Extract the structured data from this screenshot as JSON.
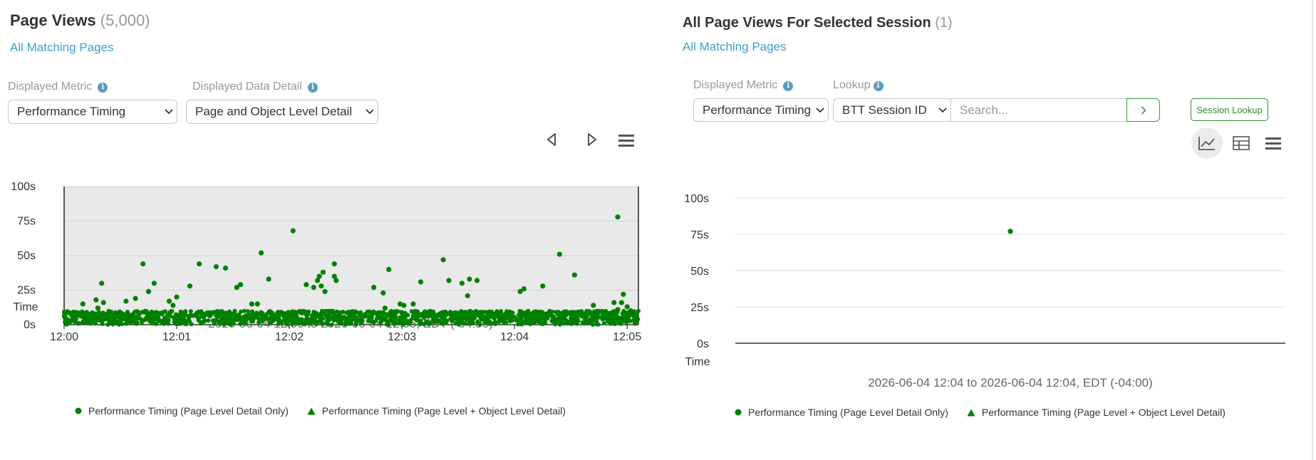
{
  "left": {
    "title": "Page Views",
    "count": "(5,000)",
    "link": "All Matching Pages",
    "metric_label": "Displayed Metric",
    "metric_value": "Performance Timing",
    "detail_label": "Displayed Data Detail",
    "detail_value": "Page and Object Level Detail",
    "time_range": "2026-06-04 12:00 to 2026-06-04 12:05, EDT (-04:00)"
  },
  "right": {
    "title": "All Page Views For Selected Session",
    "count": "(1)",
    "link": "All Matching Pages",
    "metric_label": "Displayed Metric",
    "metric_value": "Performance Timing",
    "lookup_label": "Lookup",
    "lookup_value": "BTT Session ID",
    "search_placeholder": "Search...",
    "session_lookup_label": "Session Lookup",
    "time_range": "2026-06-04 12:04 to 2026-06-04 12:04, EDT (-04:00)"
  },
  "legend": {
    "page_only": "Performance Timing (Page Level Detail Only)",
    "page_object": "Performance Timing (Page Level + Object Level Detail)"
  },
  "colors": {
    "series": "#008000",
    "link": "#3aa2c6",
    "plot_bg": "#e9e9e9",
    "accent_green": "#2e8b2e"
  },
  "icons": {
    "left_toolbar": [
      "triangle-left-icon",
      "triangle-right-icon",
      "hamburger-menu-icon"
    ],
    "right_toolbar": [
      "line-chart-icon",
      "table-icon",
      "hamburger-menu-icon"
    ]
  },
  "chart_data": [
    {
      "type": "scatter",
      "title": "Page Views",
      "xlabel": "Time",
      "ylabel": "",
      "x_ticks": [
        "12:00",
        "12:01",
        "12:02",
        "12:03",
        "12:04",
        "12:05"
      ],
      "y_ticks": [
        "0s",
        "25s",
        "50s",
        "75s",
        "100s"
      ],
      "xlim": [
        "12:00:00",
        "12:05:06"
      ],
      "ylim": [
        0,
        100
      ],
      "grid": true,
      "legend_position": "bottom",
      "dense_band": {
        "description": "thousands of page views between 0s and 10s",
        "y_range": [
          0,
          10
        ]
      },
      "series": [
        {
          "name": "Performance Timing (Page Level Detail Only)",
          "marker": "circle",
          "points": [
            {
              "x": "12:00:42",
              "y": 44
            },
            {
              "x": "12:00:20",
              "y": 30
            },
            {
              "x": "12:00:10",
              "y": 15
            },
            {
              "x": "12:00:17",
              "y": 18
            },
            {
              "x": "12:00:21",
              "y": 16
            },
            {
              "x": "12:00:18",
              "y": 12
            },
            {
              "x": "12:00:33",
              "y": 17
            },
            {
              "x": "12:00:38",
              "y": 19
            },
            {
              "x": "12:00:45",
              "y": 24
            },
            {
              "x": "12:00:48",
              "y": 30
            },
            {
              "x": "12:00:56",
              "y": 17
            },
            {
              "x": "12:00:58",
              "y": 14
            },
            {
              "x": "12:01:00",
              "y": 20
            },
            {
              "x": "12:01:07",
              "y": 28
            },
            {
              "x": "12:01:12",
              "y": 44
            },
            {
              "x": "12:01:21",
              "y": 42
            },
            {
              "x": "12:01:26",
              "y": 41
            },
            {
              "x": "12:01:32",
              "y": 27
            },
            {
              "x": "12:01:34",
              "y": 29
            },
            {
              "x": "12:01:40",
              "y": 15
            },
            {
              "x": "12:01:43",
              "y": 15
            },
            {
              "x": "12:01:45",
              "y": 52
            },
            {
              "x": "12:01:49",
              "y": 33
            },
            {
              "x": "12:02:02",
              "y": 68
            },
            {
              "x": "12:02:09",
              "y": 29
            },
            {
              "x": "12:02:13",
              "y": 27
            },
            {
              "x": "12:02:15",
              "y": 32
            },
            {
              "x": "12:02:16",
              "y": 35
            },
            {
              "x": "12:02:17",
              "y": 28
            },
            {
              "x": "12:02:18",
              "y": 38
            },
            {
              "x": "12:02:19",
              "y": 24
            },
            {
              "x": "12:02:24",
              "y": 44
            },
            {
              "x": "12:02:24",
              "y": 35
            },
            {
              "x": "12:02:25",
              "y": 32
            },
            {
              "x": "12:02:45",
              "y": 27
            },
            {
              "x": "12:02:50",
              "y": 23
            },
            {
              "x": "12:02:51",
              "y": 12
            },
            {
              "x": "12:02:53",
              "y": 40
            },
            {
              "x": "12:02:59",
              "y": 15
            },
            {
              "x": "12:03:01",
              "y": 14
            },
            {
              "x": "12:03:06",
              "y": 15
            },
            {
              "x": "12:03:10",
              "y": 31
            },
            {
              "x": "12:03:22",
              "y": 47
            },
            {
              "x": "12:03:25",
              "y": 32
            },
            {
              "x": "12:03:32",
              "y": 30
            },
            {
              "x": "12:03:35",
              "y": 21
            },
            {
              "x": "12:03:36",
              "y": 33
            },
            {
              "x": "12:03:40",
              "y": 32
            },
            {
              "x": "12:04:03",
              "y": 24
            },
            {
              "x": "12:04:05",
              "y": 26
            },
            {
              "x": "12:04:15",
              "y": 28
            },
            {
              "x": "12:04:24",
              "y": 51
            },
            {
              "x": "12:04:32",
              "y": 36
            },
            {
              "x": "12:04:42",
              "y": 14
            },
            {
              "x": "12:04:47",
              "y": 7
            },
            {
              "x": "12:04:53",
              "y": 16
            },
            {
              "x": "12:04:55",
              "y": 78
            },
            {
              "x": "12:04:55",
              "y": 11
            },
            {
              "x": "12:04:57",
              "y": 16
            },
            {
              "x": "12:04:58",
              "y": 22
            },
            {
              "x": "12:05:00",
              "y": 13
            },
            {
              "x": "12:05:02",
              "y": 10
            }
          ]
        },
        {
          "name": "Performance Timing (Page Level + Object Level Detail)",
          "marker": "triangle",
          "points": []
        }
      ]
    },
    {
      "type": "scatter",
      "title": "All Page Views For Selected Session",
      "xlabel": "Time",
      "ylabel": "",
      "y_ticks": [
        "0s",
        "25s",
        "50s",
        "75s",
        "100s"
      ],
      "ylim": [
        0,
        100
      ],
      "grid": true,
      "legend_position": "bottom",
      "series": [
        {
          "name": "Performance Timing (Page Level Detail Only)",
          "marker": "circle",
          "points": [
            {
              "x": "12:04",
              "y": 77
            }
          ]
        },
        {
          "name": "Performance Timing (Page Level + Object Level Detail)",
          "marker": "triangle",
          "points": []
        }
      ]
    }
  ]
}
